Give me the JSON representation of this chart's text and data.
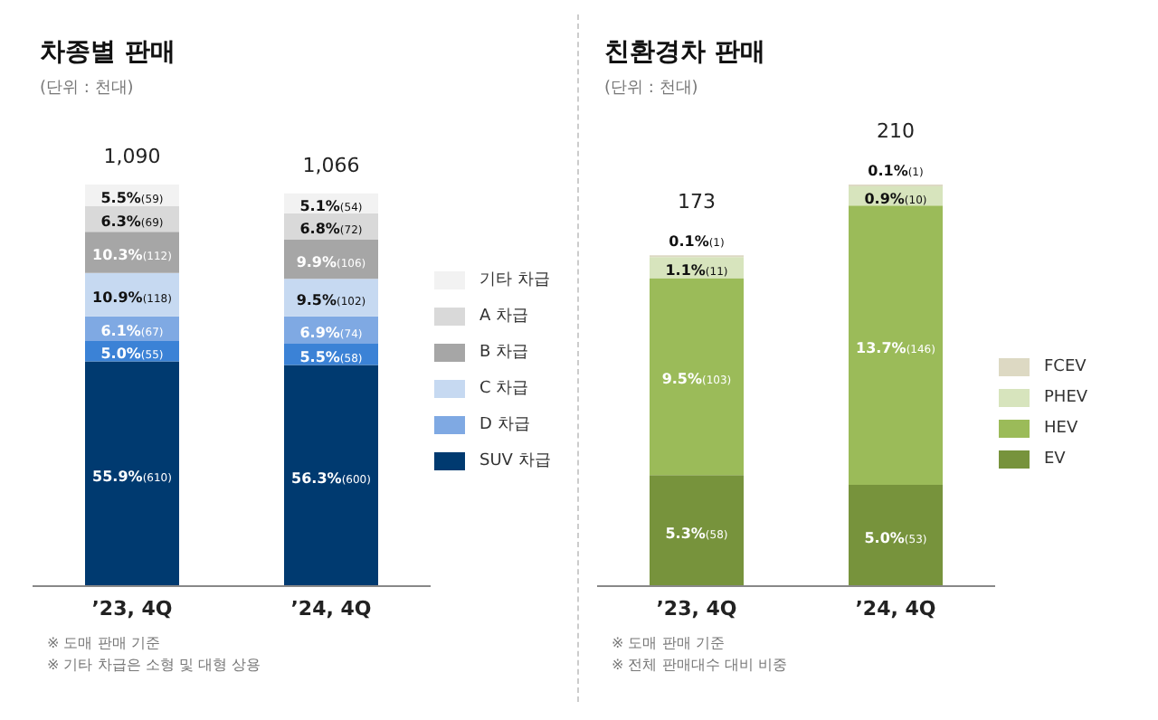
{
  "chart_data": [
    {
      "type": "bar",
      "title": "차종별 판매",
      "subtitle": "(단위 : 천대)",
      "categories": [
        "’23, 4Q",
        "’24, 4Q"
      ],
      "stacked": true,
      "legend": "right",
      "totals": [
        "1,090",
        "1,066"
      ],
      "series": [
        {
          "name": "SUV 차급",
          "color": "#003a70",
          "values": [
            610,
            600
          ],
          "value_labels": [
            "55.9%(610)",
            "56.3%(600)"
          ]
        },
        {
          "color": "#3b82d6",
          "values": [
            55,
            58
          ],
          "value_labels": [
            "5.0%(55)",
            "5.5%(58)"
          ]
        },
        {
          "name": "D 차급",
          "color": "#7fa9e3",
          "values": [
            67,
            74
          ],
          "value_labels": [
            "6.1%(67)",
            "6.9%(74)"
          ]
        },
        {
          "name": "C 차급",
          "color": "#c6d9f1",
          "values": [
            118,
            102
          ],
          "value_labels": [
            "10.9%(118)",
            "9.5%(102)"
          ]
        },
        {
          "name": "B 차급",
          "color": "#a6a6a6",
          "values": [
            112,
            106
          ],
          "value_labels": [
            "10.3%(112)",
            "9.9%(106)"
          ]
        },
        {
          "name": "A 차급",
          "color": "#d9d9d9",
          "values": [
            69,
            72
          ],
          "value_labels": [
            "6.3%(69)",
            "6.8%(72)"
          ]
        },
        {
          "name": "기타 차급",
          "color": "#f2f2f2",
          "values": [
            59,
            54
          ],
          "value_labels": [
            "5.5%(59)",
            "5.1%(54)"
          ]
        }
      ],
      "annotations": [
        "※ 도매 판매 기준",
        "※ 기타 차급은 소형 및 대형 상용"
      ]
    },
    {
      "type": "bar",
      "title": "친환경차 판매",
      "subtitle": "(단위 : 천대)",
      "categories": [
        "’23, 4Q",
        "’24, 4Q"
      ],
      "stacked": true,
      "legend": "right",
      "totals": [
        "173",
        "210"
      ],
      "series": [
        {
          "name": "EV",
          "color": "#77933c",
          "values": [
            58,
            53
          ],
          "value_labels": [
            "5.3%(58)",
            "5.0%(53)"
          ]
        },
        {
          "name": "HEV",
          "color": "#9bbb59",
          "values": [
            103,
            146
          ],
          "value_labels": [
            "9.5%(103)",
            "13.7%(146)"
          ]
        },
        {
          "name": "PHEV",
          "color": "#d7e4bd",
          "values": [
            11,
            10
          ],
          "value_labels": [
            "1.1%(11)",
            "0.9%(10)"
          ]
        },
        {
          "name": "FCEV",
          "color": "#ddd9c3",
          "values": [
            1,
            1
          ],
          "value_labels": [
            "0.1%(1)",
            "0.1%(1)"
          ]
        }
      ],
      "annotations": [
        "※ 도매 판매 기준",
        "※ 전체 판매대수 대비 비중"
      ]
    }
  ]
}
